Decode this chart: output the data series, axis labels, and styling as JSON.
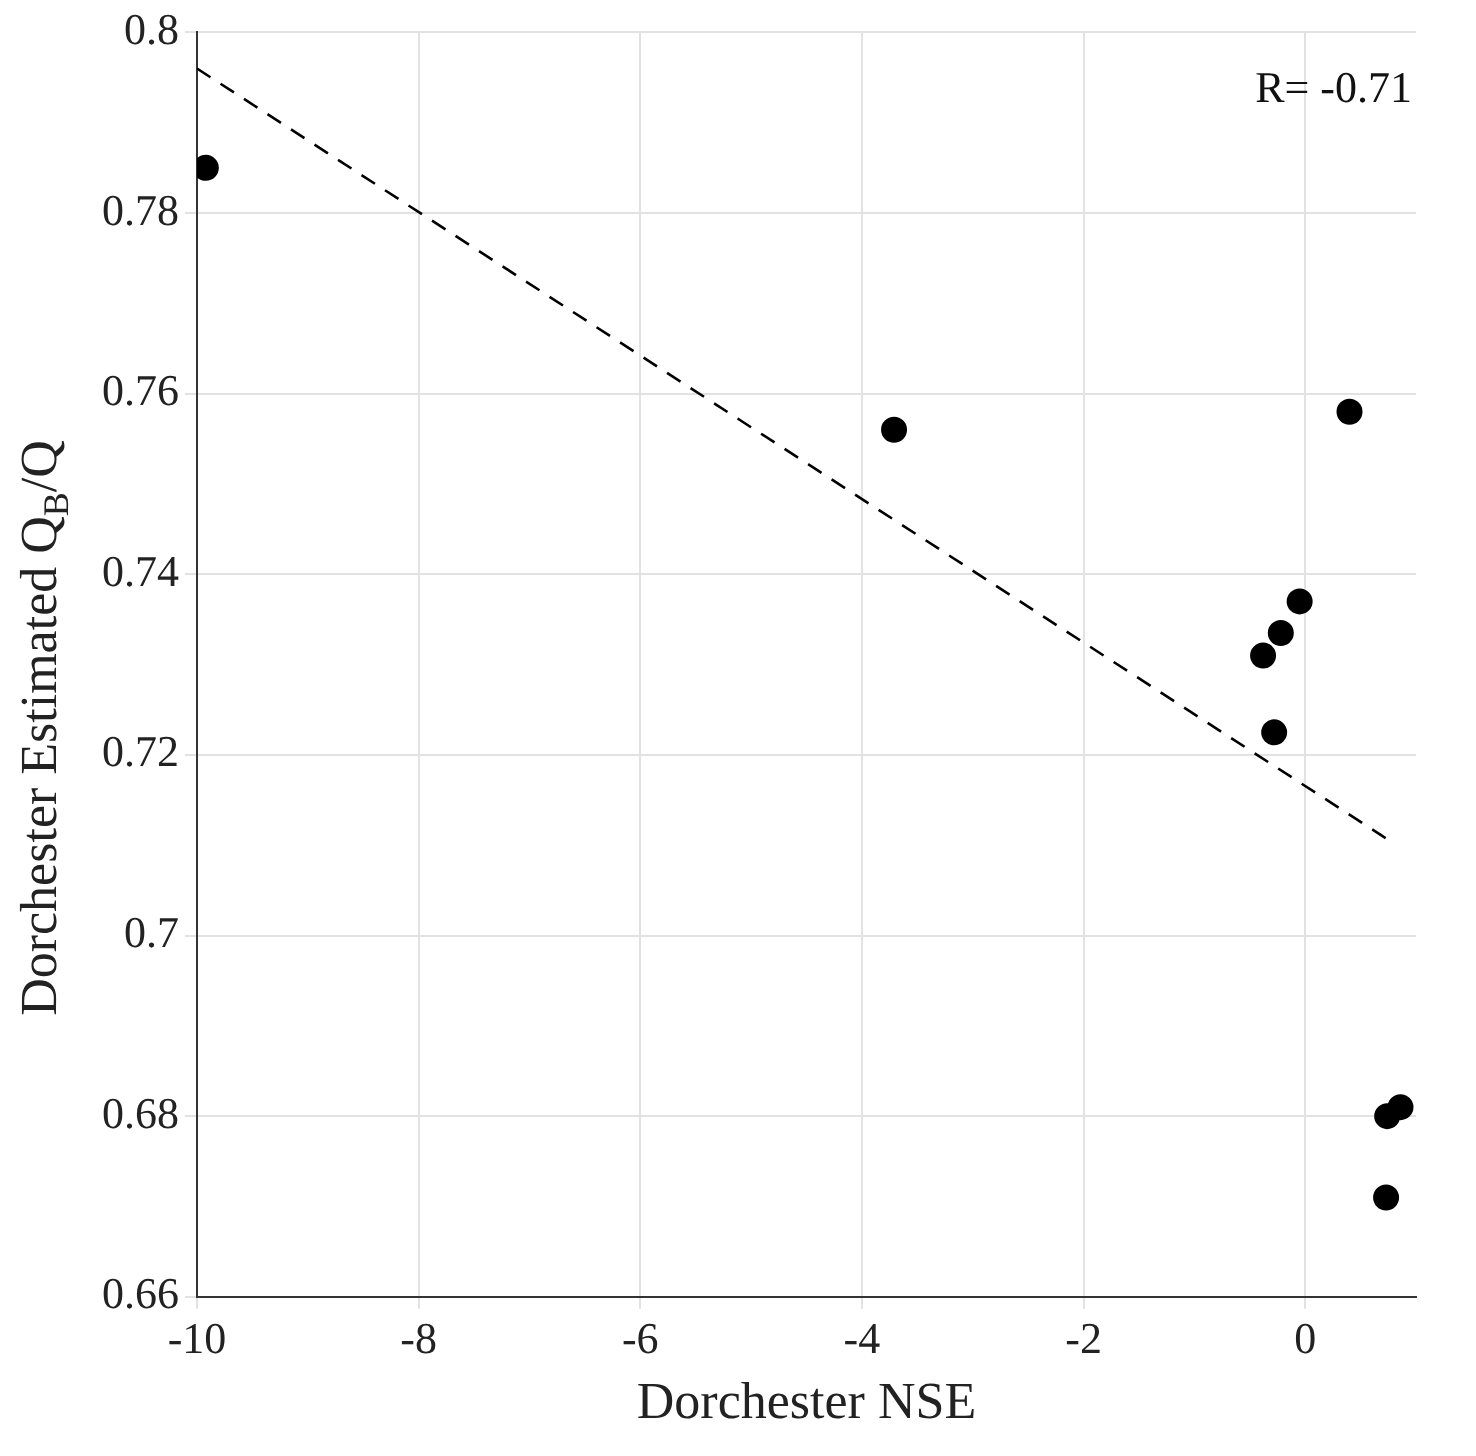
{
  "chart_data": {
    "type": "scatter",
    "xlabel": "Dorchester NSE",
    "ylabel": "Dorchester Estimated Q$_{B}$/Q",
    "annotations": [
      "R= -0.71"
    ],
    "xlim": [
      -10,
      1
    ],
    "xticks": [
      -10,
      -8,
      -6,
      -4,
      -2,
      0
    ],
    "ylim": [
      0.66,
      0.8
    ],
    "yticks": [
      0.66,
      0.68,
      0.7,
      0.72,
      0.74,
      0.76,
      0.78,
      0.8
    ],
    "grid": true,
    "marker": "circle",
    "series": [
      {
        "color": "#000000",
        "x": [
          -9.92,
          -3.71,
          0.4,
          -0.05,
          -0.22,
          -0.38,
          -0.28,
          0.74,
          0.86,
          0.73
        ],
        "values": [
          0.785,
          0.756,
          0.758,
          0.737,
          0.7335,
          0.731,
          0.7225,
          0.68,
          0.681,
          0.671
        ]
      },
      {
        "type": "line",
        "color": "#000000",
        "line_style": "dashed",
        "marker": "none",
        "x": [
          -10,
          0.75
        ],
        "values": [
          0.796,
          0.7106
        ]
      }
    ]
  }
}
